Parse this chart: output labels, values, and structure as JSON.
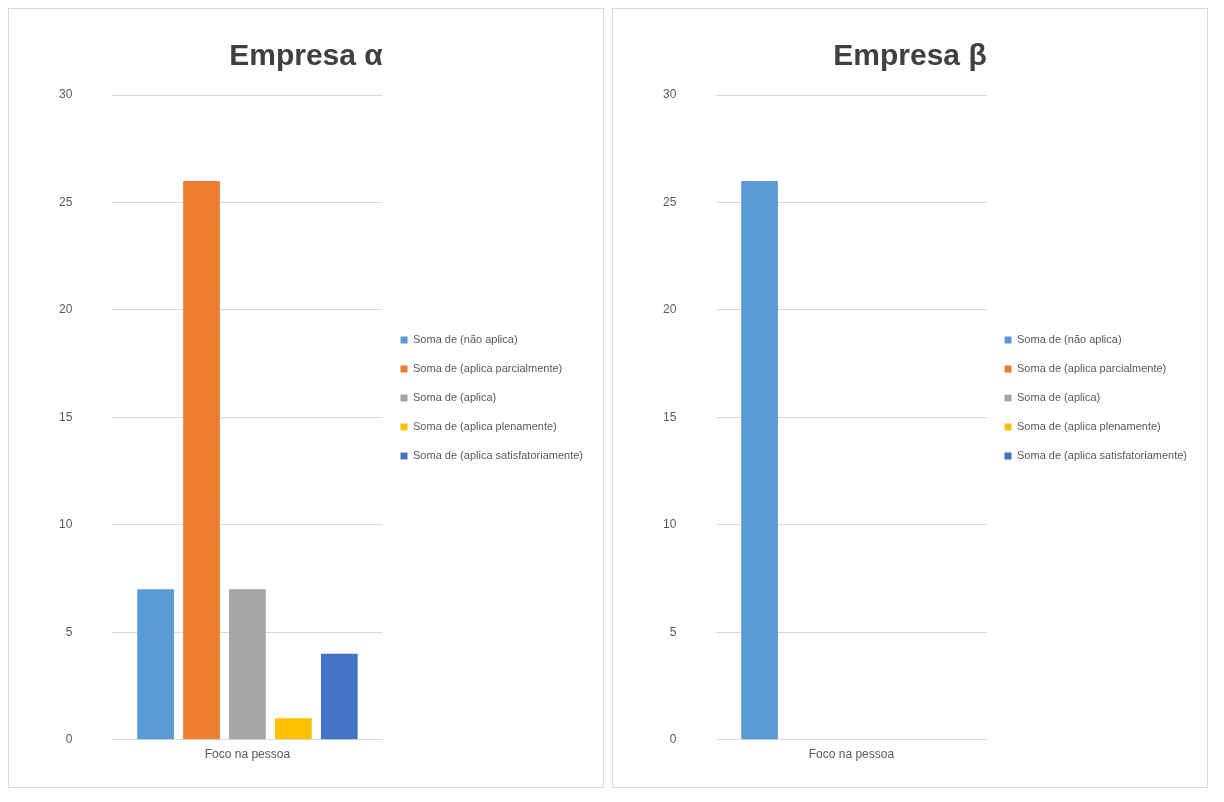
{
  "chart_data": [
    {
      "type": "bar",
      "title": "Empresa α",
      "categories": [
        "Foco na pessoa"
      ],
      "series": [
        {
          "name": "Soma de (não aplica)",
          "color": "#5b9bd5",
          "values": [
            7
          ]
        },
        {
          "name": "Soma de (aplica parcialmente)",
          "color": "#ed7d31",
          "values": [
            26
          ]
        },
        {
          "name": "Soma de (aplica)",
          "color": "#a5a5a5",
          "values": [
            7
          ]
        },
        {
          "name": "Soma de (aplica plenamente)",
          "color": "#ffc000",
          "values": [
            1
          ]
        },
        {
          "name": "Soma de (aplica satisfatoriamente)",
          "color": "#4472c4",
          "values": [
            4
          ]
        }
      ],
      "ylim": [
        0,
        30
      ],
      "yticks": [
        0,
        5,
        10,
        15,
        20,
        25,
        30
      ],
      "grid": "y",
      "legend": "right"
    },
    {
      "type": "bar",
      "title": "Empresa β",
      "categories": [
        "Foco na pessoa"
      ],
      "series": [
        {
          "name": "Soma de (não aplica)",
          "color": "#5b9bd5",
          "values": [
            26
          ]
        },
        {
          "name": "Soma de (aplica parcialmente)",
          "color": "#ed7d31",
          "values": [
            null
          ]
        },
        {
          "name": "Soma de (aplica)",
          "color": "#a5a5a5",
          "values": [
            null
          ]
        },
        {
          "name": "Soma de (aplica plenamente)",
          "color": "#ffc000",
          "values": [
            null
          ]
        },
        {
          "name": "Soma de (aplica satisfatoriamente)",
          "color": "#4472c4",
          "values": [
            null
          ]
        }
      ],
      "ylim": [
        0,
        30
      ],
      "yticks": [
        0,
        5,
        10,
        15,
        20,
        25,
        30
      ],
      "grid": "y",
      "legend": "right"
    }
  ]
}
